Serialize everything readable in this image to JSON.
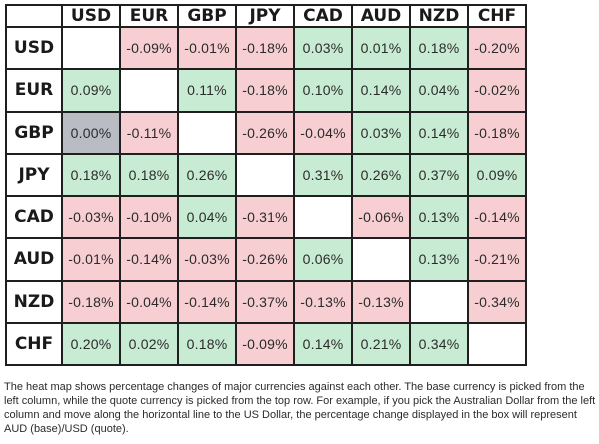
{
  "colors": {
    "positive": "#c8ecd3",
    "negative": "#f7cfd2",
    "neutral": "#b9bcc2",
    "blank": "#ffffff"
  },
  "chart_data": {
    "type": "heatmap",
    "columns": [
      "USD",
      "EUR",
      "GBP",
      "JPY",
      "CAD",
      "AUD",
      "NZD",
      "CHF"
    ],
    "rows": [
      {
        "label": "USD",
        "values": [
          "",
          "-0.09%",
          "-0.01%",
          "-0.18%",
          "0.03%",
          "0.01%",
          "0.18%",
          "-0.20%"
        ]
      },
      {
        "label": "EUR",
        "values": [
          "0.09%",
          "",
          "0.11%",
          "-0.18%",
          "0.10%",
          "0.14%",
          "0.04%",
          "-0.02%"
        ]
      },
      {
        "label": "GBP",
        "values": [
          "0.00%",
          "-0.11%",
          "",
          "-0.26%",
          "-0.04%",
          "0.03%",
          "0.14%",
          "-0.18%"
        ]
      },
      {
        "label": "JPY",
        "values": [
          "0.18%",
          "0.18%",
          "0.26%",
          "",
          "0.31%",
          "0.26%",
          "0.37%",
          "0.09%"
        ]
      },
      {
        "label": "CAD",
        "values": [
          "-0.03%",
          "-0.10%",
          "0.04%",
          "-0.31%",
          "",
          "-0.06%",
          "0.13%",
          "-0.14%"
        ]
      },
      {
        "label": "AUD",
        "values": [
          "-0.01%",
          "-0.14%",
          "-0.03%",
          "-0.26%",
          "0.06%",
          "",
          "0.13%",
          "-0.21%"
        ]
      },
      {
        "label": "NZD",
        "values": [
          "-0.18%",
          "-0.04%",
          "-0.14%",
          "-0.37%",
          "-0.13%",
          "-0.13%",
          "",
          "-0.34%"
        ]
      },
      {
        "label": "CHF",
        "values": [
          "0.20%",
          "0.02%",
          "0.18%",
          "-0.09%",
          "0.14%",
          "0.21%",
          "0.34%",
          ""
        ]
      }
    ]
  },
  "note": "The heat map shows percentage changes of major currencies against each other. The base currency is picked from the left column, while the quote currency is picked from the top row. For example, if you pick the Australian Dollar from the left column and move along the horizontal line to the US Dollar, the percentage change displayed in the box will represent AUD (base)/USD (quote)."
}
